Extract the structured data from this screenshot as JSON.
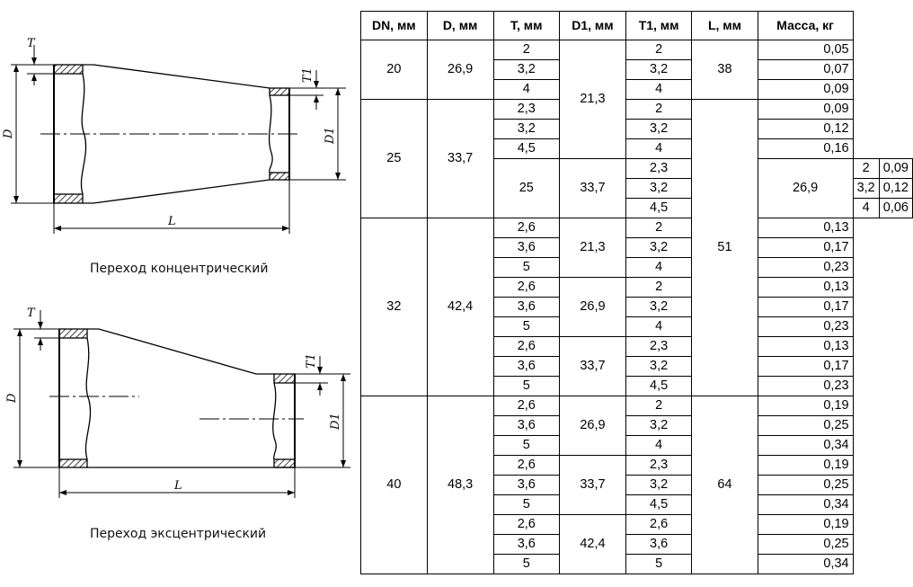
{
  "drawings": {
    "concentric": {
      "caption": "Переход концентрический",
      "labels": {
        "T": "T",
        "T1": "T1",
        "D": "D",
        "D1": "D1",
        "L": "L"
      }
    },
    "eccentric": {
      "caption": "Переход эксцентрический",
      "labels": {
        "T": "T",
        "T1": "T1",
        "D": "D",
        "D1": "D1",
        "L": "L"
      }
    }
  },
  "table": {
    "headers": [
      "DN, мм",
      "D, мм",
      "T, мм",
      "D1, мм",
      "T1, мм",
      "L, мм",
      "Масса, кг"
    ],
    "groups": [
      {
        "DN": "20",
        "D": "26,9",
        "L": "38",
        "subs": [
          {
            "D1": "21,3",
            "rows": [
              [
                "2",
                "2",
                "0,05"
              ],
              [
                "3,2",
                "3,2",
                "0,07"
              ],
              [
                "4",
                "4",
                "0,09"
              ],
              [
                "2,3",
                "2",
                "0,09"
              ],
              [
                "3,2",
                "3,2",
                "0,12"
              ],
              [
                "4,5",
                "4",
                "0,16"
              ]
            ],
            "split": 3
          }
        ]
      },
      {
        "DN": "25",
        "D": "33,7",
        "subs": [
          {
            "D1": "26,9",
            "rows": [
              [
                "2,3",
                "2",
                "0,09"
              ],
              [
                "3,2",
                "3,2",
                "0,12"
              ],
              [
                "4,5",
                "4",
                "0,06"
              ]
            ]
          }
        ]
      },
      {
        "DN": "32",
        "D": "42,4",
        "subs": [
          {
            "D1": "21,3",
            "rows": [
              [
                "2,6",
                "2",
                "0,13"
              ],
              [
                "3,6",
                "3,2",
                "0,17"
              ],
              [
                "5",
                "4",
                "0,23"
              ]
            ]
          },
          {
            "D1": "26,9",
            "rows": [
              [
                "2,6",
                "2",
                "0,13"
              ],
              [
                "3,6",
                "3,2",
                "0,17"
              ],
              [
                "5",
                "4",
                "0,23"
              ]
            ]
          },
          {
            "D1": "33,7",
            "rows": [
              [
                "2,6",
                "2,3",
                "0,13"
              ],
              [
                "3,6",
                "3,2",
                "0,17"
              ],
              [
                "5",
                "4,5",
                "0,23"
              ]
            ]
          }
        ]
      },
      {
        "DN": "40",
        "D": "48,3",
        "L": "64",
        "subs": [
          {
            "D1": "26,9",
            "rows": [
              [
                "2,6",
                "2",
                "0,19"
              ],
              [
                "3,6",
                "3,2",
                "0,25"
              ],
              [
                "5",
                "4",
                "0,34"
              ]
            ]
          },
          {
            "D1": "33,7",
            "rows": [
              [
                "2,6",
                "2,3",
                "0,19"
              ],
              [
                "3,6",
                "3,2",
                "0,25"
              ],
              [
                "5",
                "4,5",
                "0,34"
              ]
            ]
          },
          {
            "D1": "42,4",
            "rows": [
              [
                "2,6",
                "2,6",
                "0,19"
              ],
              [
                "3,6",
                "3,6",
                "0,25"
              ],
              [
                "5",
                "5",
                "0,34"
              ]
            ]
          }
        ]
      }
    ],
    "L_25_32": "51"
  }
}
